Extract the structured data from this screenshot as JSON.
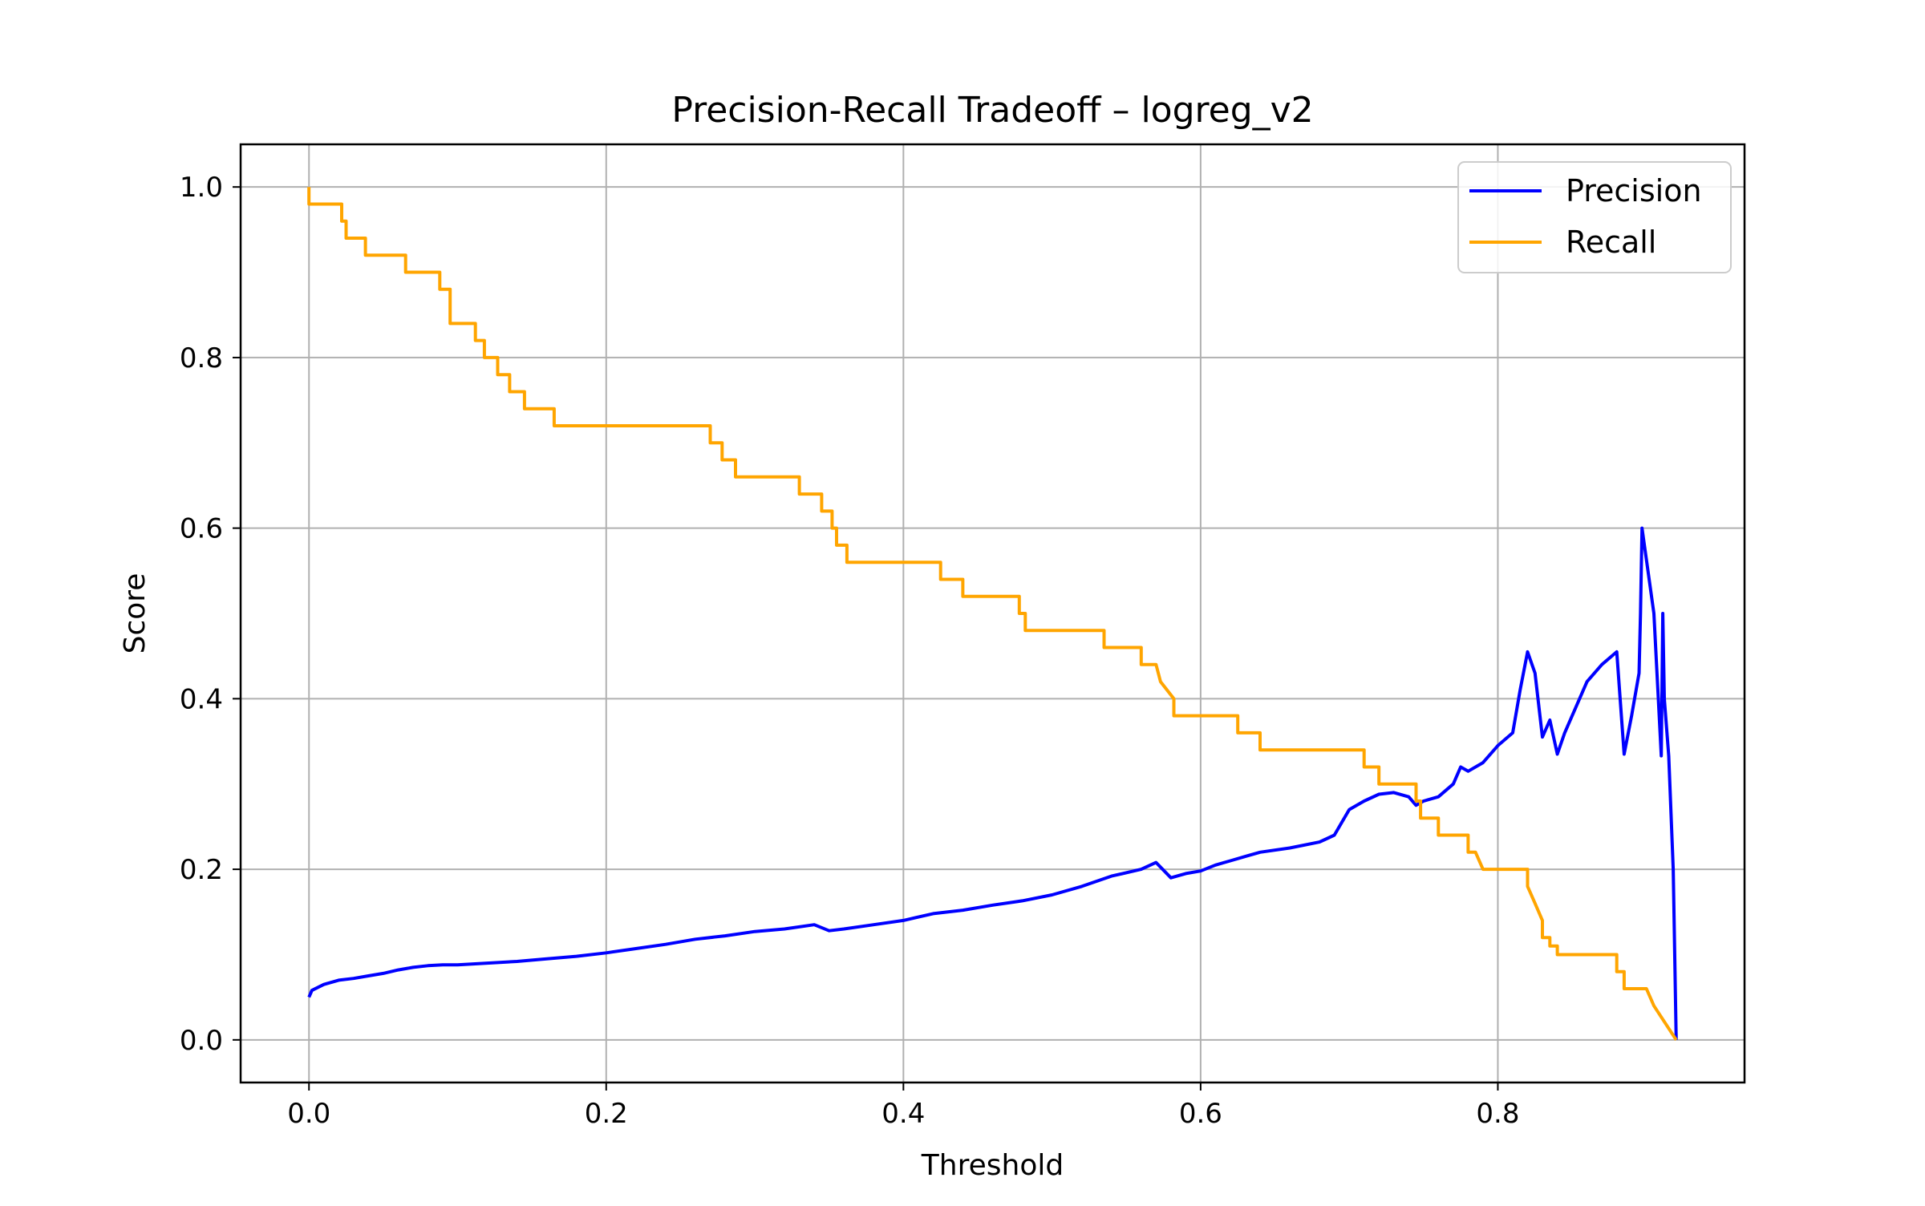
{
  "chart_data": {
    "type": "line",
    "title": "Precision-Recall Tradeoff – logreg_v2",
    "xlabel": "Threshold",
    "ylabel": "Score",
    "xlim": [
      -0.046,
      0.966
    ],
    "ylim": [
      -0.05,
      1.05
    ],
    "xticks": [
      0.0,
      0.2,
      0.4,
      0.6,
      0.8
    ],
    "xtick_labels": [
      "0.0",
      "0.2",
      "0.4",
      "0.6",
      "0.8"
    ],
    "yticks": [
      0.0,
      0.2,
      0.4,
      0.6,
      0.8,
      1.0
    ],
    "ytick_labels": [
      "0.0",
      "0.2",
      "0.4",
      "0.6",
      "0.8",
      "1.0"
    ],
    "grid": true,
    "legend_position": "top-right",
    "series": [
      {
        "name": "Precision",
        "color": "#0000ff",
        "x": [
          0.0,
          0.002,
          0.01,
          0.02,
          0.03,
          0.04,
          0.05,
          0.06,
          0.07,
          0.08,
          0.09,
          0.1,
          0.12,
          0.14,
          0.16,
          0.18,
          0.2,
          0.22,
          0.24,
          0.26,
          0.28,
          0.3,
          0.32,
          0.34,
          0.35,
          0.36,
          0.38,
          0.4,
          0.42,
          0.44,
          0.46,
          0.48,
          0.5,
          0.52,
          0.54,
          0.56,
          0.57,
          0.58,
          0.59,
          0.6,
          0.61,
          0.62,
          0.63,
          0.64,
          0.66,
          0.68,
          0.69,
          0.7,
          0.71,
          0.72,
          0.73,
          0.74,
          0.745,
          0.75,
          0.76,
          0.77,
          0.775,
          0.78,
          0.79,
          0.8,
          0.81,
          0.815,
          0.82,
          0.825,
          0.83,
          0.835,
          0.84,
          0.845,
          0.85,
          0.86,
          0.87,
          0.88,
          0.885,
          0.89,
          0.895,
          0.896,
          0.897,
          0.905,
          0.91,
          0.911,
          0.912,
          0.915,
          0.918,
          0.92
        ],
        "values": [
          0.05,
          0.058,
          0.065,
          0.07,
          0.072,
          0.075,
          0.078,
          0.082,
          0.085,
          0.087,
          0.088,
          0.088,
          0.09,
          0.092,
          0.095,
          0.098,
          0.102,
          0.107,
          0.112,
          0.118,
          0.122,
          0.127,
          0.13,
          0.135,
          0.128,
          0.13,
          0.135,
          0.14,
          0.148,
          0.152,
          0.158,
          0.163,
          0.17,
          0.18,
          0.192,
          0.2,
          0.208,
          0.19,
          0.195,
          0.198,
          0.205,
          0.21,
          0.215,
          0.22,
          0.225,
          0.232,
          0.24,
          0.27,
          0.28,
          0.288,
          0.29,
          0.285,
          0.275,
          0.28,
          0.285,
          0.3,
          0.32,
          0.315,
          0.325,
          0.345,
          0.36,
          0.41,
          0.455,
          0.43,
          0.355,
          0.375,
          0.335,
          0.36,
          0.38,
          0.42,
          0.44,
          0.455,
          0.335,
          0.38,
          0.43,
          0.5,
          0.6,
          0.5,
          0.333,
          0.5,
          0.4,
          0.333,
          0.2,
          0.0
        ]
      },
      {
        "name": "Recall",
        "color": "#ffa500",
        "x": [
          0.0,
          0.0,
          0.022,
          0.022,
          0.025,
          0.025,
          0.038,
          0.038,
          0.065,
          0.065,
          0.088,
          0.088,
          0.095,
          0.095,
          0.112,
          0.112,
          0.118,
          0.118,
          0.127,
          0.127,
          0.135,
          0.135,
          0.145,
          0.145,
          0.165,
          0.165,
          0.27,
          0.27,
          0.278,
          0.278,
          0.287,
          0.287,
          0.33,
          0.33,
          0.345,
          0.345,
          0.352,
          0.352,
          0.355,
          0.355,
          0.362,
          0.362,
          0.37,
          0.37,
          0.425,
          0.425,
          0.44,
          0.44,
          0.478,
          0.478,
          0.482,
          0.482,
          0.535,
          0.535,
          0.56,
          0.56,
          0.57,
          0.573,
          0.582,
          0.582,
          0.625,
          0.625,
          0.64,
          0.64,
          0.71,
          0.71,
          0.72,
          0.72,
          0.745,
          0.745,
          0.748,
          0.748,
          0.76,
          0.76,
          0.78,
          0.78,
          0.785,
          0.79,
          0.79,
          0.82,
          0.82,
          0.825,
          0.83,
          0.83,
          0.835,
          0.835,
          0.84,
          0.84,
          0.88,
          0.88,
          0.885,
          0.885,
          0.9,
          0.905,
          0.92
        ],
        "values": [
          1.0,
          0.98,
          0.98,
          0.96,
          0.96,
          0.94,
          0.94,
          0.92,
          0.92,
          0.9,
          0.9,
          0.88,
          0.88,
          0.84,
          0.84,
          0.82,
          0.82,
          0.8,
          0.8,
          0.78,
          0.78,
          0.76,
          0.76,
          0.74,
          0.74,
          0.72,
          0.72,
          0.7,
          0.7,
          0.68,
          0.68,
          0.66,
          0.66,
          0.64,
          0.64,
          0.62,
          0.62,
          0.6,
          0.6,
          0.58,
          0.58,
          0.56,
          0.56,
          0.56,
          0.56,
          0.54,
          0.54,
          0.52,
          0.52,
          0.5,
          0.5,
          0.48,
          0.48,
          0.46,
          0.46,
          0.44,
          0.44,
          0.42,
          0.4,
          0.38,
          0.38,
          0.36,
          0.36,
          0.34,
          0.34,
          0.32,
          0.32,
          0.3,
          0.3,
          0.28,
          0.28,
          0.26,
          0.26,
          0.24,
          0.24,
          0.22,
          0.22,
          0.2,
          0.2,
          0.2,
          0.18,
          0.16,
          0.14,
          0.12,
          0.12,
          0.11,
          0.11,
          0.1,
          0.1,
          0.08,
          0.08,
          0.06,
          0.06,
          0.04,
          0.0
        ]
      }
    ]
  }
}
